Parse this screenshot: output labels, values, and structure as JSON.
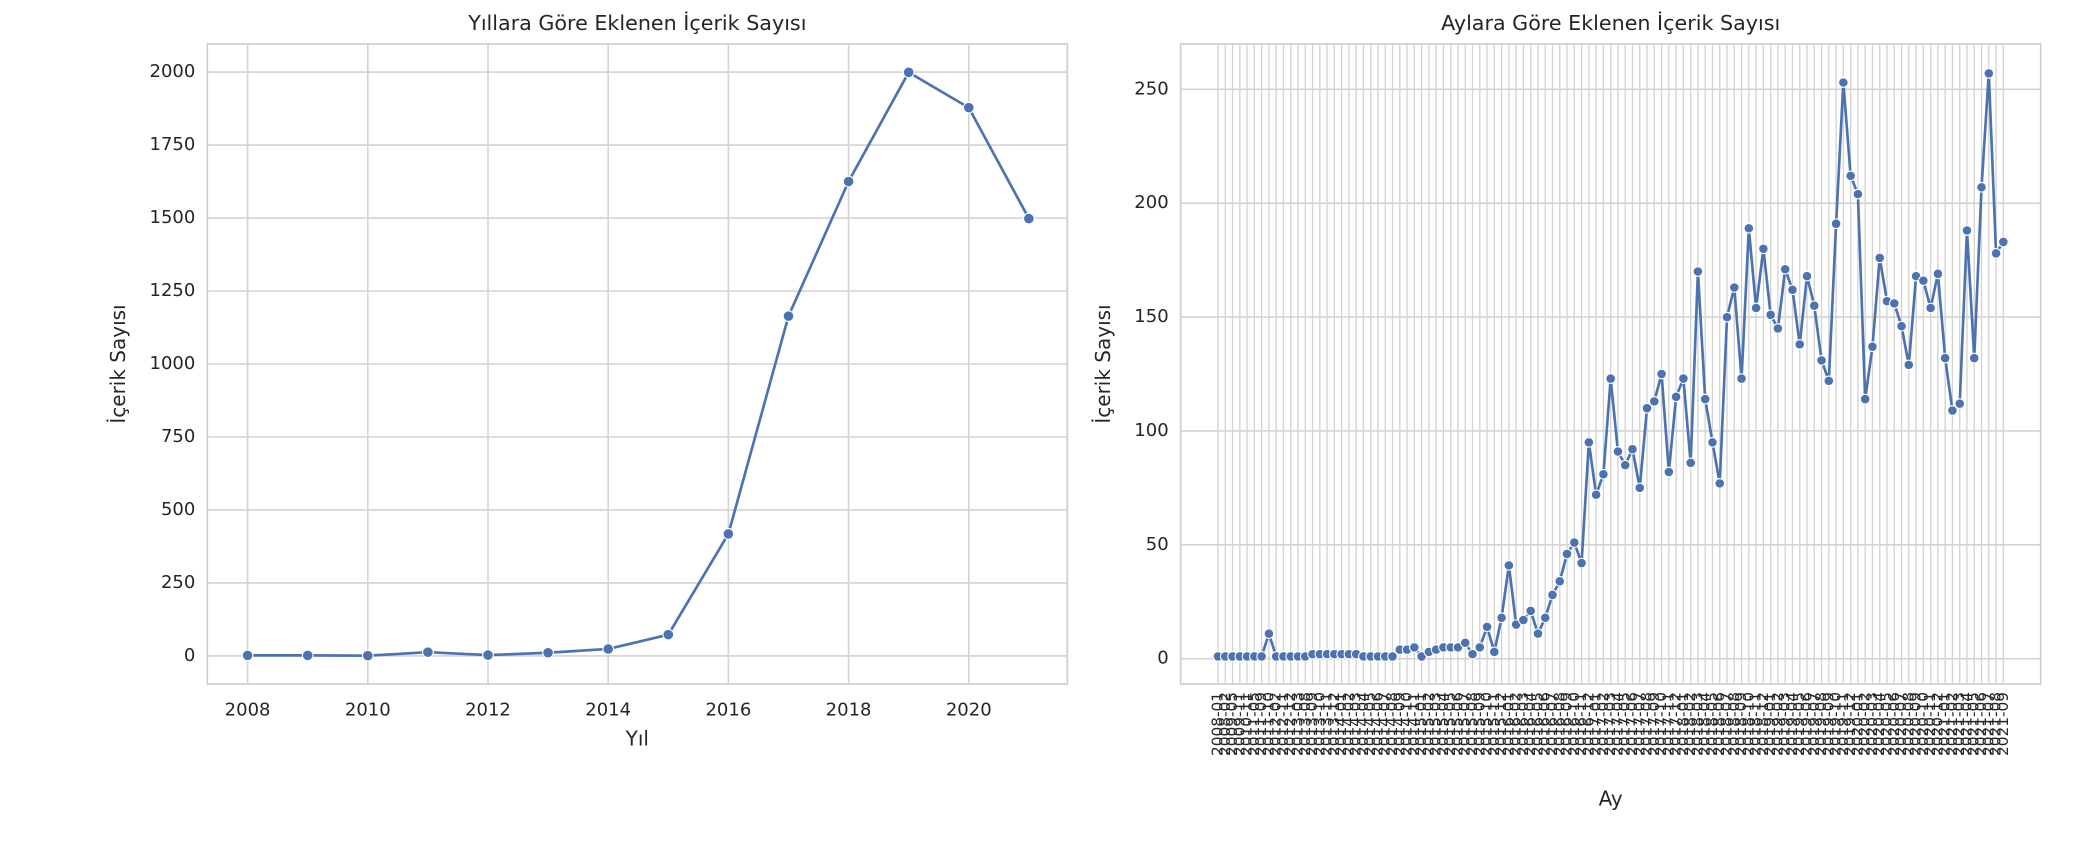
{
  "chart_data": [
    {
      "type": "line",
      "title": "Yıllara Göre Eklenen İçerik Sayısı",
      "xlabel": "Yıl",
      "ylabel": "İçerik Sayısı",
      "x": [
        2008,
        2009,
        2010,
        2011,
        2012,
        2013,
        2014,
        2015,
        2016,
        2017,
        2018,
        2019,
        2020,
        2021
      ],
      "values": [
        2,
        2,
        1,
        13,
        3,
        11,
        24,
        73,
        418,
        1164,
        1625,
        1999,
        1878,
        1498
      ],
      "color": "#4c72b0",
      "xlim": [
        2007.33,
        2021.64
      ],
      "xticks": [
        2008,
        2010,
        2012,
        2014,
        2016,
        2018,
        2020
      ],
      "ylim": [
        -96,
        2096
      ],
      "yticks": [
        0,
        250,
        500,
        750,
        1000,
        1250,
        1500,
        1750,
        2000
      ],
      "grid": true
    },
    {
      "type": "line",
      "title": "Aylara Göre Eklenen İçerik Sayısı",
      "xlabel": "Ay",
      "ylabel": "İçerik Sayısı",
      "categories": [
        "2008-01",
        "2008-02",
        "2009-05",
        "2009-11",
        "2010-11",
        "2011-05",
        "2011-09",
        "2011-10",
        "2012-02",
        "2012-11",
        "2012-12",
        "2013-03",
        "2013-08",
        "2013-09",
        "2013-10",
        "2013-11",
        "2013-12",
        "2014-01",
        "2014-02",
        "2014-03",
        "2014-04",
        "2014-05",
        "2014-06",
        "2014-07",
        "2014-08",
        "2014-09",
        "2014-10",
        "2014-11",
        "2015-01",
        "2015-02",
        "2015-03",
        "2015-04",
        "2015-05",
        "2015-06",
        "2015-07",
        "2015-08",
        "2015-09",
        "2015-10",
        "2015-11",
        "2015-12",
        "2016-01",
        "2016-02",
        "2016-03",
        "2016-04",
        "2016-05",
        "2016-06",
        "2016-07",
        "2016-08",
        "2016-09",
        "2016-10",
        "2016-11",
        "2016-12",
        "2017-01",
        "2017-02",
        "2017-03",
        "2017-04",
        "2017-05",
        "2017-06",
        "2017-07",
        "2017-08",
        "2017-09",
        "2017-10",
        "2017-11",
        "2017-12",
        "2018-01",
        "2018-02",
        "2018-03",
        "2018-04",
        "2018-05",
        "2018-06",
        "2018-07",
        "2018-08",
        "2018-09",
        "2018-10",
        "2018-11",
        "2018-12",
        "2019-01",
        "2019-02",
        "2019-03",
        "2019-04",
        "2019-05",
        "2019-06",
        "2019-07",
        "2019-08",
        "2019-09",
        "2019-10",
        "2019-11",
        "2019-12",
        "2020-01",
        "2020-02",
        "2020-03",
        "2020-04",
        "2020-05",
        "2020-06",
        "2020-07",
        "2020-08",
        "2020-09",
        "2020-10",
        "2020-11",
        "2020-12",
        "2021-01",
        "2021-02",
        "2021-03",
        "2021-04",
        "2021-05",
        "2021-06",
        "2021-07",
        "2021-08",
        "2021-09"
      ],
      "values": [
        1,
        1,
        1,
        1,
        1,
        1,
        1,
        11,
        1,
        1,
        1,
        1,
        1,
        2,
        2,
        2,
        2,
        2,
        2,
        2,
        1,
        1,
        1,
        1,
        1,
        4,
        4,
        5,
        1,
        3,
        4,
        5,
        5,
        5,
        7,
        2,
        5,
        14,
        3,
        18,
        41,
        15,
        17,
        21,
        11,
        18,
        28,
        34,
        46,
        51,
        42,
        95,
        72,
        81,
        123,
        91,
        85,
        92,
        75,
        110,
        113,
        125,
        82,
        115,
        123,
        86,
        170,
        114,
        95,
        77,
        150,
        163,
        123,
        189,
        154,
        180,
        151,
        145,
        171,
        162,
        138,
        168,
        155,
        131,
        122,
        191,
        253,
        212,
        204,
        114,
        137,
        176,
        157,
        156,
        146,
        129,
        168,
        166,
        154,
        169,
        132,
        109,
        112,
        188,
        132,
        207,
        257,
        178,
        183
      ],
      "color": "#4c72b0",
      "ylim": [
        -11.1,
        269.9
      ],
      "yticks": [
        0,
        50,
        100,
        150,
        200,
        250
      ],
      "grid": true
    }
  ]
}
